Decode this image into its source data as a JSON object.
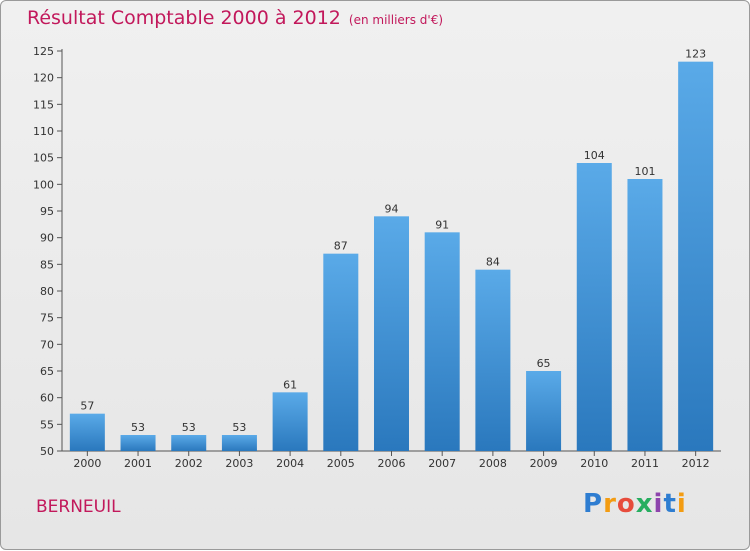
{
  "title": "Résultat Comptable 2000 à 2012",
  "unit": "(en milliers d'€)",
  "commune": "BERNEUIL",
  "logo": [
    "P",
    "r",
    "o",
    "x",
    "i",
    "t",
    "i"
  ],
  "colors": {
    "bar": "#3a8fd8",
    "bar_light": "#5aaae8",
    "title": "#c2185b"
  },
  "chart_data": {
    "type": "bar",
    "title": "Résultat Comptable 2000 à 2012",
    "xlabel": "",
    "ylabel": "",
    "categories": [
      "2000",
      "2001",
      "2002",
      "2003",
      "2004",
      "2005",
      "2006",
      "2007",
      "2008",
      "2009",
      "2010",
      "2011",
      "2012"
    ],
    "values": [
      57,
      53,
      53,
      53,
      61,
      87,
      94,
      91,
      84,
      65,
      104,
      101,
      123
    ],
    "ylim": [
      50,
      125
    ],
    "yticks": [
      50,
      55,
      60,
      65,
      70,
      75,
      80,
      85,
      90,
      95,
      100,
      105,
      110,
      115,
      120,
      125
    ],
    "grid": false,
    "legend": "none"
  }
}
